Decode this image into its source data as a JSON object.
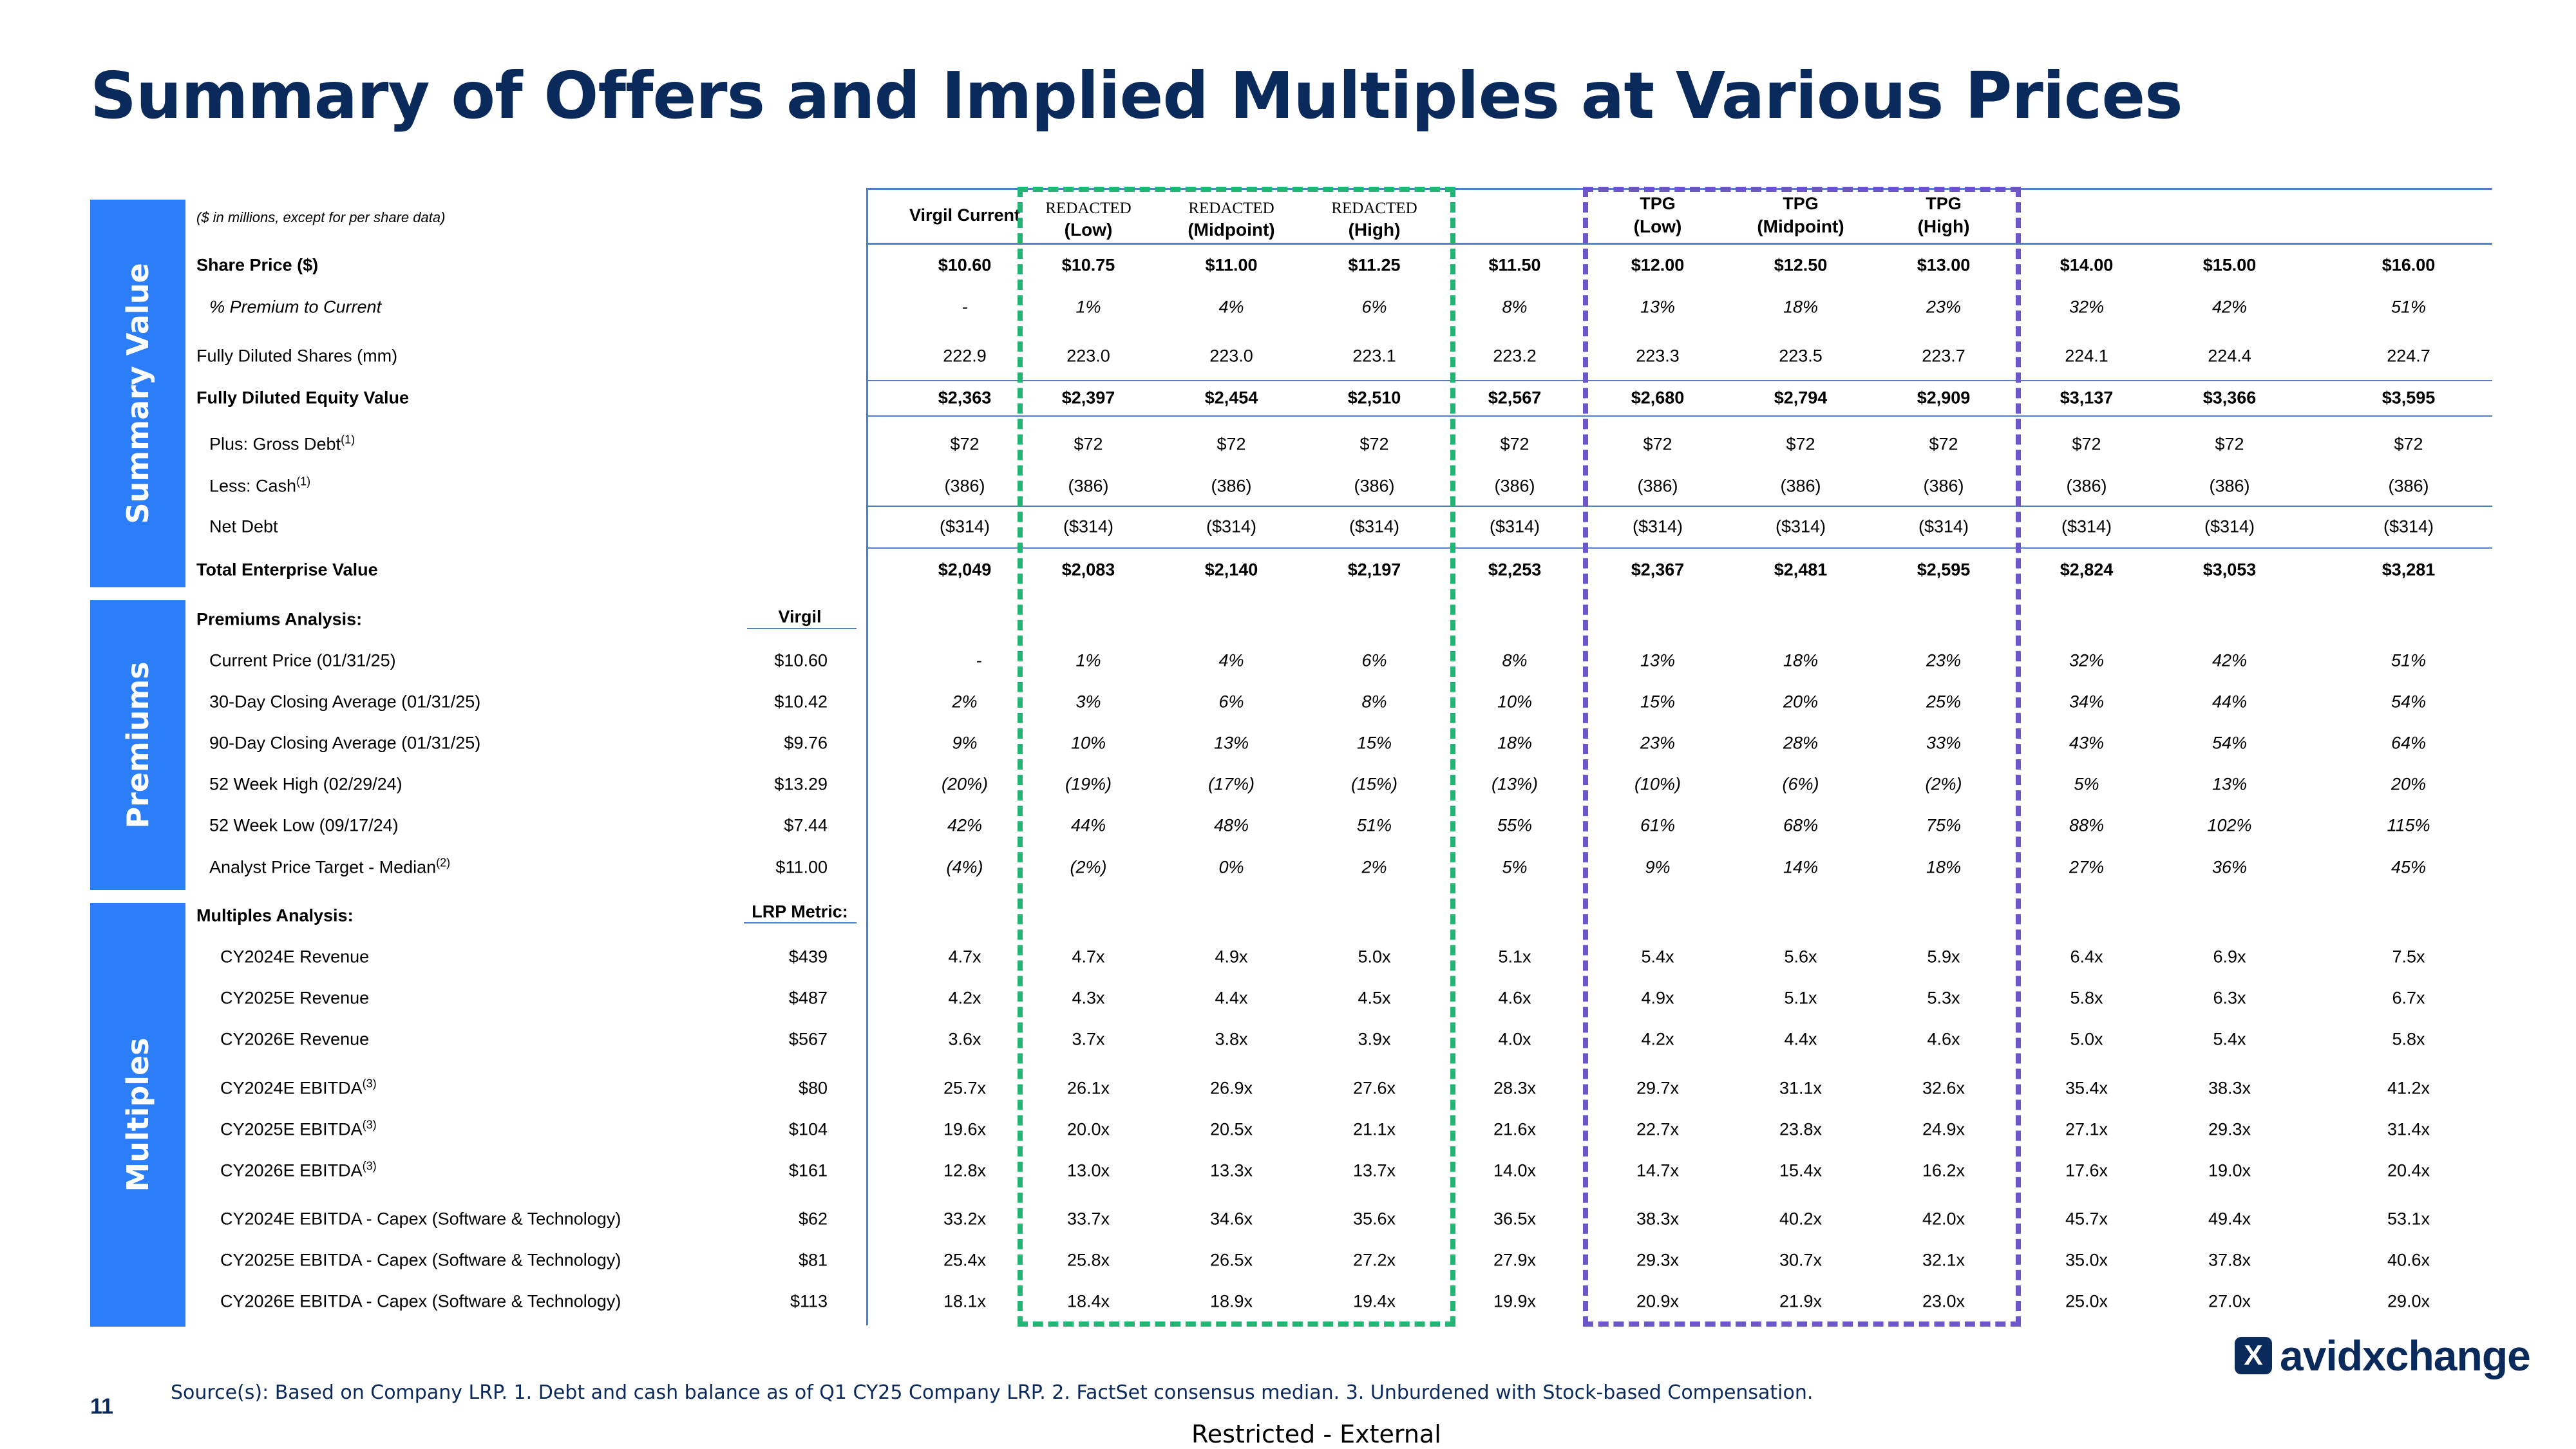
{
  "title": "Summary of Offers and Implied Multiples at Various Prices",
  "sections": {
    "summary": "Summary Value",
    "premiums": "Premiums",
    "multiples": "Multiples"
  },
  "units_note": "($ in millions, except for per share data)",
  "columns": [
    {
      "line1": "Virgil Current",
      "line2": "",
      "style": "plain"
    },
    {
      "line1": "REDACTED",
      "line2": "(Low)",
      "style": "redacted"
    },
    {
      "line1": "REDACTED",
      "line2": "(Midpoint)",
      "style": "redacted"
    },
    {
      "line1": "REDACTED",
      "line2": "(High)",
      "style": "redacted"
    },
    {
      "line1": "",
      "line2": "",
      "style": "blank"
    },
    {
      "line1": "TPG",
      "line2": "(Low)",
      "style": "tpg"
    },
    {
      "line1": "TPG",
      "line2": "(Midpoint)",
      "style": "tpg"
    },
    {
      "line1": "TPG",
      "line2": "(High)",
      "style": "tpg"
    },
    {
      "line1": "",
      "line2": "",
      "style": "blank"
    },
    {
      "line1": "",
      "line2": "",
      "style": "blank"
    },
    {
      "line1": "",
      "line2": "",
      "style": "blank"
    }
  ],
  "summary_rows": [
    {
      "label": "Share Price ($)",
      "bold": true,
      "italic": false,
      "values": [
        "$10.60",
        "$10.75",
        "$11.00",
        "$11.25",
        "$11.50",
        "$12.00",
        "$12.50",
        "$13.00",
        "$14.00",
        "$15.00",
        "$16.00"
      ]
    },
    {
      "label": "% Premium to Current",
      "bold": false,
      "italic": true,
      "values": [
        "-",
        "1%",
        "4%",
        "6%",
        "8%",
        "13%",
        "18%",
        "23%",
        "32%",
        "42%",
        "51%"
      ]
    },
    {
      "label": "Fully Diluted Shares (mm)",
      "bold": false,
      "italic": false,
      "values": [
        "222.9",
        "223.0",
        "223.0",
        "223.1",
        "223.2",
        "223.3",
        "223.5",
        "223.7",
        "224.1",
        "224.4",
        "224.7"
      ]
    },
    {
      "label": "Fully Diluted Equity Value",
      "bold": true,
      "italic": false,
      "values": [
        "$2,363",
        "$2,397",
        "$2,454",
        "$2,510",
        "$2,567",
        "$2,680",
        "$2,794",
        "$2,909",
        "$3,137",
        "$3,366",
        "$3,595"
      ]
    },
    {
      "label": "Plus: Gross Debt",
      "sup": "(1)",
      "bold": false,
      "italic": false,
      "values": [
        "$72",
        "$72",
        "$72",
        "$72",
        "$72",
        "$72",
        "$72",
        "$72",
        "$72",
        "$72",
        "$72"
      ]
    },
    {
      "label": "Less: Cash",
      "sup": "(1)",
      "bold": false,
      "italic": false,
      "values": [
        "(386)",
        "(386)",
        "(386)",
        "(386)",
        "(386)",
        "(386)",
        "(386)",
        "(386)",
        "(386)",
        "(386)",
        "(386)"
      ]
    },
    {
      "label": "Net Debt",
      "bold": false,
      "italic": false,
      "values": [
        "($314)",
        "($314)",
        "($314)",
        "($314)",
        "($314)",
        "($314)",
        "($314)",
        "($314)",
        "($314)",
        "($314)",
        "($314)"
      ]
    },
    {
      "label": "Total Enterprise Value",
      "bold": true,
      "italic": false,
      "values": [
        "$2,049",
        "$2,083",
        "$2,140",
        "$2,197",
        "$2,253",
        "$2,367",
        "$2,481",
        "$2,595",
        "$2,824",
        "$3,053",
        "$3,281"
      ]
    }
  ],
  "premiums": {
    "heading": "Premiums Analysis:",
    "metric_header": "Virgil",
    "rows": [
      {
        "label": "Current Price (01/31/25)",
        "metric": "$10.60",
        "values": [
          "-",
          "1%",
          "4%",
          "6%",
          "8%",
          "13%",
          "18%",
          "23%",
          "32%",
          "42%",
          "51%"
        ]
      },
      {
        "label": "30-Day Closing Average (01/31/25)",
        "metric": "$10.42",
        "values": [
          "2%",
          "3%",
          "6%",
          "8%",
          "10%",
          "15%",
          "20%",
          "25%",
          "34%",
          "44%",
          "54%"
        ]
      },
      {
        "label": "90-Day Closing Average (01/31/25)",
        "metric": "$9.76",
        "values": [
          "9%",
          "10%",
          "13%",
          "15%",
          "18%",
          "23%",
          "28%",
          "33%",
          "43%",
          "54%",
          "64%"
        ]
      },
      {
        "label": "52 Week High (02/29/24)",
        "metric": "$13.29",
        "values": [
          "(20%)",
          "(19%)",
          "(17%)",
          "(15%)",
          "(13%)",
          "(10%)",
          "(6%)",
          "(2%)",
          "5%",
          "13%",
          "20%"
        ]
      },
      {
        "label": "52 Week Low (09/17/24)",
        "metric": "$7.44",
        "values": [
          "42%",
          "44%",
          "48%",
          "51%",
          "55%",
          "61%",
          "68%",
          "75%",
          "88%",
          "102%",
          "115%"
        ]
      },
      {
        "label": "Analyst Price Target - Median",
        "sup": "(2)",
        "metric": "$11.00",
        "values": [
          "(4%)",
          "(2%)",
          "0%",
          "2%",
          "5%",
          "9%",
          "14%",
          "18%",
          "27%",
          "36%",
          "45%"
        ]
      }
    ]
  },
  "multiples": {
    "heading": "Multiples Analysis:",
    "metric_header": "LRP Metric:",
    "rows": [
      {
        "label": "CY2024E Revenue",
        "metric": "$439",
        "values": [
          "4.7x",
          "4.7x",
          "4.9x",
          "5.0x",
          "5.1x",
          "5.4x",
          "5.6x",
          "5.9x",
          "6.4x",
          "6.9x",
          "7.5x"
        ]
      },
      {
        "label": "CY2025E Revenue",
        "metric": "$487",
        "values": [
          "4.2x",
          "4.3x",
          "4.4x",
          "4.5x",
          "4.6x",
          "4.9x",
          "5.1x",
          "5.3x",
          "5.8x",
          "6.3x",
          "6.7x"
        ]
      },
      {
        "label": "CY2026E Revenue",
        "metric": "$567",
        "values": [
          "3.6x",
          "3.7x",
          "3.8x",
          "3.9x",
          "4.0x",
          "4.2x",
          "4.4x",
          "4.6x",
          "5.0x",
          "5.4x",
          "5.8x"
        ]
      },
      {
        "label": "CY2024E EBITDA",
        "sup": "(3)",
        "metric": "$80",
        "values": [
          "25.7x",
          "26.1x",
          "26.9x",
          "27.6x",
          "28.3x",
          "29.7x",
          "31.1x",
          "32.6x",
          "35.4x",
          "38.3x",
          "41.2x"
        ]
      },
      {
        "label": "CY2025E EBITDA",
        "sup": "(3)",
        "metric": "$104",
        "values": [
          "19.6x",
          "20.0x",
          "20.5x",
          "21.1x",
          "21.6x",
          "22.7x",
          "23.8x",
          "24.9x",
          "27.1x",
          "29.3x",
          "31.4x"
        ]
      },
      {
        "label": "CY2026E EBITDA",
        "sup": "(3)",
        "metric": "$161",
        "values": [
          "12.8x",
          "13.0x",
          "13.3x",
          "13.7x",
          "14.0x",
          "14.7x",
          "15.4x",
          "16.2x",
          "17.6x",
          "19.0x",
          "20.4x"
        ]
      },
      {
        "label": "CY2024E EBITDA - Capex (Software & Technology)",
        "metric": "$62",
        "values": [
          "33.2x",
          "33.7x",
          "34.6x",
          "35.6x",
          "36.5x",
          "38.3x",
          "40.2x",
          "42.0x",
          "45.7x",
          "49.4x",
          "53.1x"
        ]
      },
      {
        "label": "CY2025E EBITDA - Capex (Software & Technology)",
        "metric": "$81",
        "values": [
          "25.4x",
          "25.8x",
          "26.5x",
          "27.2x",
          "27.9x",
          "29.3x",
          "30.7x",
          "32.1x",
          "35.0x",
          "37.8x",
          "40.6x"
        ]
      },
      {
        "label": "CY2026E EBITDA - Capex (Software & Technology)",
        "metric": "$113",
        "values": [
          "18.1x",
          "18.4x",
          "18.9x",
          "19.4x",
          "19.9x",
          "20.9x",
          "21.9x",
          "23.0x",
          "25.0x",
          "27.0x",
          "29.0x"
        ]
      }
    ]
  },
  "footnote": "Source(s): Based on Company LRP. 1. Debt and cash balance as of Q1 CY25 Company LRP. 2. FactSet consensus median. 3. Unburdened with Stock-based Compensation.",
  "page_number": "11",
  "classification": "Restricted - External",
  "logo": {
    "mark": "X",
    "text": "avidxchange"
  },
  "colors": {
    "title": "#0b2a5c",
    "section": "#2c7ef8",
    "rule": "#4f7fcf",
    "green_box": "#22b573",
    "purple_box": "#6c56c9"
  }
}
